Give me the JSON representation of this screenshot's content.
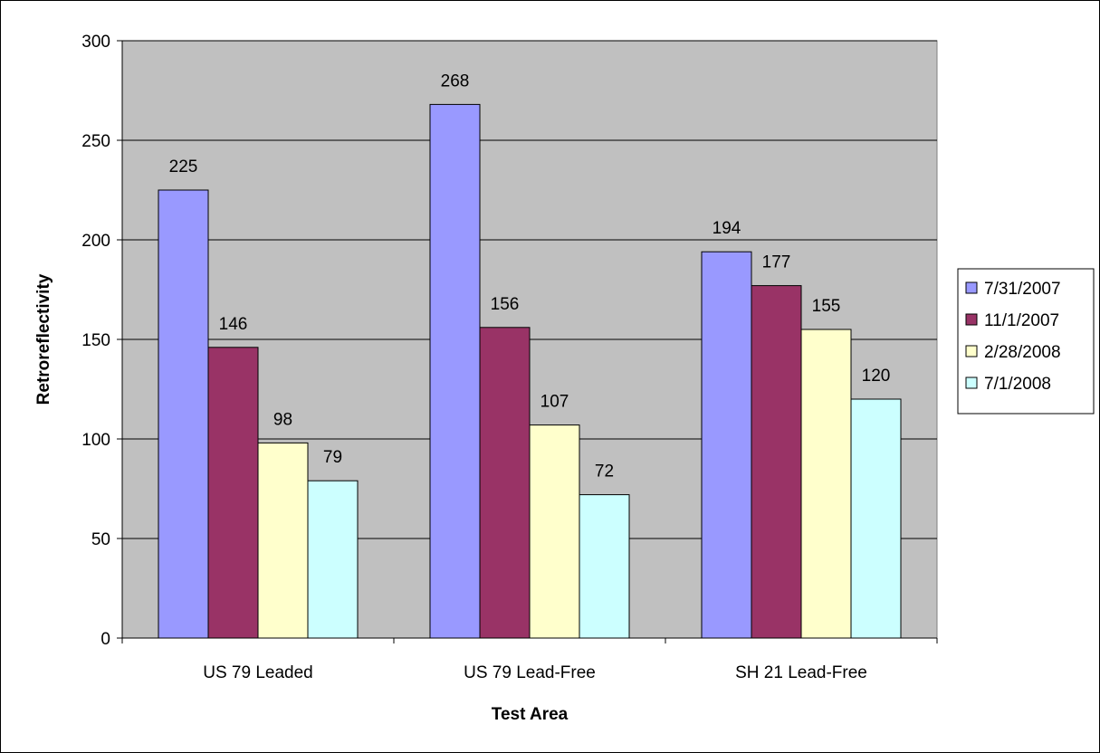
{
  "chart_data": {
    "type": "bar",
    "title": "",
    "xlabel": "Test Area",
    "ylabel": "Retroreflectivity",
    "ylim": [
      0,
      300
    ],
    "yticks": [
      0,
      50,
      100,
      150,
      200,
      250,
      300
    ],
    "grid": true,
    "legend_position": "right",
    "plot_background": "#c0c0c0",
    "categories": [
      "US 79 Leaded",
      "US 79 Lead-Free",
      "SH 21 Lead-Free"
    ],
    "series": [
      {
        "name": "7/31/2007",
        "color": "#9999ff",
        "values": [
          225,
          268,
          194
        ]
      },
      {
        "name": "11/1/2007",
        "color": "#993366",
        "values": [
          146,
          156,
          177
        ]
      },
      {
        "name": "2/28/2008",
        "color": "#ffffcc",
        "values": [
          98,
          107,
          155
        ]
      },
      {
        "name": "7/1/2008",
        "color": "#ccffff",
        "values": [
          79,
          72,
          120
        ]
      }
    ]
  }
}
